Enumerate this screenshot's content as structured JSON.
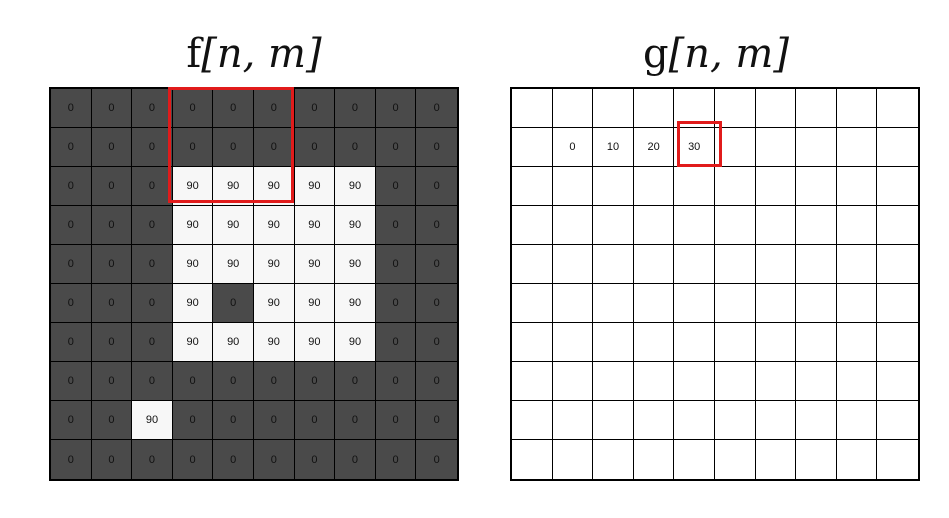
{
  "titles": {
    "left": {
      "fn": "f",
      "vars": "[n, m]"
    },
    "right": {
      "fn": "g",
      "vars": "[n, m]"
    }
  },
  "colors": {
    "dark_cell": "#4a4a4a",
    "light_cell": "#f7f7f7",
    "highlight": "#e11b1b"
  },
  "f_grid": [
    [
      "0",
      "0",
      "0",
      "0",
      "0",
      "0",
      "0",
      "0",
      "0",
      "0"
    ],
    [
      "0",
      "0",
      "0",
      "0",
      "0",
      "0",
      "0",
      "0",
      "0",
      "0"
    ],
    [
      "0",
      "0",
      "0",
      "90",
      "90",
      "90",
      "90",
      "90",
      "0",
      "0"
    ],
    [
      "0",
      "0",
      "0",
      "90",
      "90",
      "90",
      "90",
      "90",
      "0",
      "0"
    ],
    [
      "0",
      "0",
      "0",
      "90",
      "90",
      "90",
      "90",
      "90",
      "0",
      "0"
    ],
    [
      "0",
      "0",
      "0",
      "90",
      "0",
      "90",
      "90",
      "90",
      "0",
      "0"
    ],
    [
      "0",
      "0",
      "0",
      "90",
      "90",
      "90",
      "90",
      "90",
      "0",
      "0"
    ],
    [
      "0",
      "0",
      "0",
      "0",
      "0",
      "0",
      "0",
      "0",
      "0",
      "0"
    ],
    [
      "0",
      "0",
      "90",
      "0",
      "0",
      "0",
      "0",
      "0",
      "0",
      "0"
    ],
    [
      "0",
      "0",
      "0",
      "0",
      "0",
      "0",
      "0",
      "0",
      "0",
      "0"
    ]
  ],
  "g_grid": [
    [
      "",
      "",
      "",
      "",
      "",
      "",
      "",
      "",
      "",
      ""
    ],
    [
      "",
      "0",
      "10",
      "20",
      "30",
      "",
      "",
      "",
      "",
      ""
    ],
    [
      "",
      "",
      "",
      "",
      "",
      "",
      "",
      "",
      "",
      ""
    ],
    [
      "",
      "",
      "",
      "",
      "",
      "",
      "",
      "",
      "",
      ""
    ],
    [
      "",
      "",
      "",
      "",
      "",
      "",
      "",
      "",
      "",
      ""
    ],
    [
      "",
      "",
      "",
      "",
      "",
      "",
      "",
      "",
      "",
      ""
    ],
    [
      "",
      "",
      "",
      "",
      "",
      "",
      "",
      "",
      "",
      ""
    ],
    [
      "",
      "",
      "",
      "",
      "",
      "",
      "",
      "",
      "",
      ""
    ],
    [
      "",
      "",
      "",
      "",
      "",
      "",
      "",
      "",
      "",
      ""
    ],
    [
      "",
      "",
      "",
      "",
      "",
      "",
      "",
      "",
      "",
      ""
    ]
  ]
}
